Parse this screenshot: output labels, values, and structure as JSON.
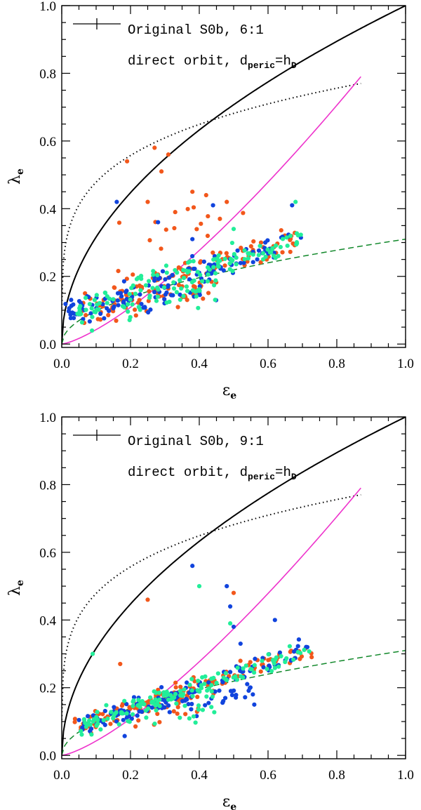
{
  "colors": {
    "orange": "#f2571b",
    "blue": "#1144dd",
    "green": "#22ee99",
    "magenta": "#ee33cc",
    "dashed_green": "#11882a",
    "black": "#000000"
  },
  "chart_data": [
    {
      "type": "scatter",
      "title_lines": [
        "Original S0b, 6:1",
        "direct orbit, d"
      ],
      "legend": {
        "line1": "Original S0b, 6:1",
        "line2_prefix": "direct orbit, d",
        "line2_sub1": "peric",
        "line2_mid": "=h",
        "line2_sub2": "D"
      },
      "xlabel": "ε",
      "xlabel_sub": "e",
      "ylabel": "λ",
      "ylabel_sub": "e",
      "xlim": [
        0.0,
        1.0
      ],
      "ylim": [
        -0.01,
        1.0
      ],
      "xticks": [
        "0.0",
        "0.2",
        "0.4",
        "0.6",
        "0.8",
        "1.0"
      ],
      "yticks": [
        "0.0",
        "0.2",
        "0.4",
        "0.6",
        "0.8",
        "1.0"
      ],
      "series": [
        {
          "name": "orange",
          "color": "orange",
          "count": 170,
          "seed": 11,
          "clusters": [
            {
              "n": 110,
              "x": [
                0.02,
                0.68
              ],
              "y_of": "band",
              "spread": 0.045
            },
            {
              "n": 45,
              "x": [
                0.03,
                0.45
              ],
              "y_of": "low",
              "spread": 0.05
            },
            {
              "n": 15,
              "x": [
                0.15,
                0.55
              ],
              "y_of": "high",
              "spread": 0.09
            }
          ],
          "outliers": [
            [
              0.27,
              0.58
            ],
            [
              0.31,
              0.56
            ],
            [
              0.19,
              0.54
            ],
            [
              0.29,
              0.51
            ],
            [
              0.25,
              0.42
            ],
            [
              0.38,
              0.45
            ],
            [
              0.42,
              0.44
            ],
            [
              0.48,
              0.42
            ],
            [
              0.33,
              0.39
            ],
            [
              0.46,
              0.37
            ]
          ]
        },
        {
          "name": "blue",
          "color": "blue",
          "count": 160,
          "seed": 23,
          "clusters": [
            {
              "n": 110,
              "x": [
                0.0,
                0.7
              ],
              "y_of": "band",
              "spread": 0.04
            },
            {
              "n": 40,
              "x": [
                0.02,
                0.45
              ],
              "y_of": "low",
              "spread": 0.04
            }
          ],
          "outliers": [
            [
              0.16,
              0.42
            ],
            [
              0.28,
              0.36
            ],
            [
              0.44,
              0.41
            ],
            [
              0.67,
              0.41
            ],
            [
              0.38,
              0.31
            ]
          ]
        },
        {
          "name": "green",
          "color": "green",
          "count": 160,
          "seed": 37,
          "clusters": [
            {
              "n": 120,
              "x": [
                0.04,
                0.7
              ],
              "y_of": "band",
              "spread": 0.04
            },
            {
              "n": 35,
              "x": [
                0.05,
                0.45
              ],
              "y_of": "low",
              "spread": 0.05
            }
          ],
          "outliers": [
            [
              0.68,
              0.42
            ],
            [
              0.5,
              0.34
            ]
          ]
        }
      ],
      "curves": [
        {
          "name": "isotropic",
          "style": "solid",
          "color": "black"
        },
        {
          "name": "edge-on",
          "style": "dotted",
          "color": "black"
        },
        {
          "name": "model",
          "style": "solid",
          "color": "magenta"
        },
        {
          "name": "threshold",
          "style": "dashed",
          "color": "dashed_green"
        }
      ]
    },
    {
      "type": "scatter",
      "legend": {
        "line1": "Original S0b, 9:1",
        "line2_prefix": "direct orbit, d",
        "line2_sub1": "peric",
        "line2_mid": "=h",
        "line2_sub2": "D"
      },
      "xlabel": "ε",
      "xlabel_sub": "e",
      "ylabel": "λ",
      "ylabel_sub": "e",
      "xlim": [
        0.0,
        1.0
      ],
      "ylim": [
        -0.01,
        1.0
      ],
      "xticks": [
        "0.0",
        "0.2",
        "0.4",
        "0.6",
        "0.8",
        "1.0"
      ],
      "yticks": [
        "0.0",
        "0.2",
        "0.4",
        "0.6",
        "0.8",
        "1.0"
      ],
      "series": [
        {
          "name": "orange",
          "color": "orange",
          "count": 170,
          "seed": 51,
          "clusters": [
            {
              "n": 120,
              "x": [
                0.03,
                0.73
              ],
              "y_of": "band2",
              "spread": 0.03
            },
            {
              "n": 45,
              "x": [
                0.03,
                0.4
              ],
              "y_of": "low",
              "spread": 0.04
            }
          ],
          "outliers": [
            [
              0.25,
              0.46
            ],
            [
              0.5,
              0.48
            ],
            [
              0.17,
              0.27
            ]
          ]
        },
        {
          "name": "blue",
          "color": "blue",
          "count": 150,
          "seed": 67,
          "clusters": [
            {
              "n": 95,
              "x": [
                0.05,
                0.72
              ],
              "y_of": "band2",
              "spread": 0.03
            },
            {
              "n": 50,
              "x": [
                0.15,
                0.56
              ],
              "y_of": "low2",
              "spread": 0.04
            }
          ],
          "outliers": [
            [
              0.38,
              0.56
            ],
            [
              0.48,
              0.5
            ],
            [
              0.62,
              0.4
            ],
            [
              0.49,
              0.44
            ],
            [
              0.5,
              0.38
            ],
            [
              0.52,
              0.33
            ],
            [
              0.56,
              0.15
            ]
          ]
        },
        {
          "name": "green",
          "color": "green",
          "count": 160,
          "seed": 79,
          "clusters": [
            {
              "n": 110,
              "x": [
                0.04,
                0.72
              ],
              "y_of": "band2",
              "spread": 0.03
            },
            {
              "n": 45,
              "x": [
                0.05,
                0.45
              ],
              "y_of": "low",
              "spread": 0.045
            }
          ],
          "outliers": [
            [
              0.4,
              0.5
            ],
            [
              0.49,
              0.39
            ],
            [
              0.09,
              0.3
            ]
          ]
        }
      ],
      "curves": [
        {
          "name": "isotropic",
          "style": "solid",
          "color": "black"
        },
        {
          "name": "edge-on",
          "style": "dotted",
          "color": "black"
        },
        {
          "name": "model",
          "style": "solid",
          "color": "magenta"
        },
        {
          "name": "threshold",
          "style": "dashed",
          "color": "dashed_green"
        }
      ]
    }
  ]
}
